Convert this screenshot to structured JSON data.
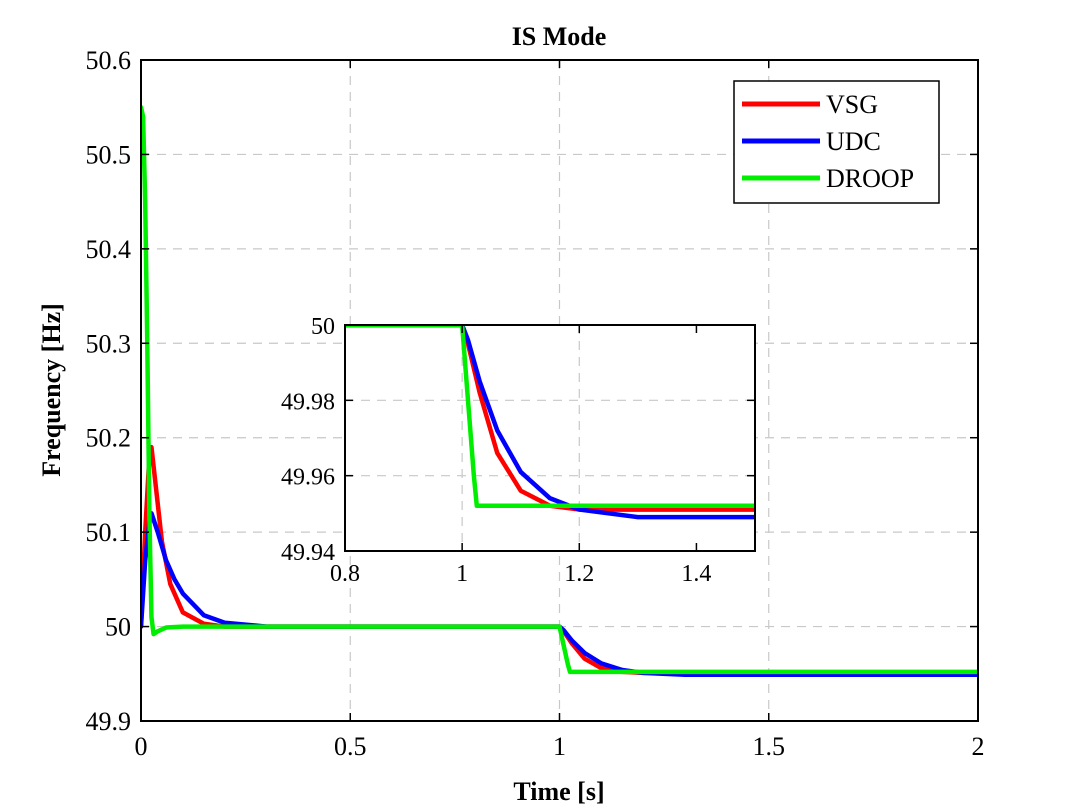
{
  "chart_data": {
    "type": "line",
    "title": "IS Mode",
    "xlabel": "Time [s]",
    "ylabel": "Frequency [Hz]",
    "xlim": [
      0,
      2
    ],
    "ylim": [
      49.9,
      50.6
    ],
    "x_ticks": [
      "0",
      "0.5",
      "1",
      "1.5",
      "2"
    ],
    "y_ticks": [
      "49.9",
      "50",
      "50.1",
      "50.2",
      "50.3",
      "50.4",
      "50.5",
      "50.6"
    ],
    "grid": true,
    "legend_position": "top-right",
    "series": [
      {
        "name": "VSG",
        "color": "#ff0000",
        "points": [
          [
            0,
            50
          ],
          [
            0.01,
            50.1
          ],
          [
            0.02,
            50.18
          ],
          [
            0.025,
            50.19
          ],
          [
            0.035,
            50.15
          ],
          [
            0.05,
            50.09
          ],
          [
            0.07,
            50.045
          ],
          [
            0.1,
            50.015
          ],
          [
            0.15,
            50.003
          ],
          [
            0.2,
            50
          ],
          [
            1,
            50
          ],
          [
            1.01,
            49.995
          ],
          [
            1.03,
            49.982
          ],
          [
            1.06,
            49.966
          ],
          [
            1.1,
            49.956
          ],
          [
            1.15,
            49.952
          ],
          [
            1.2,
            49.951
          ],
          [
            1.3,
            49.951
          ],
          [
            2,
            49.951
          ]
        ]
      },
      {
        "name": "UDC",
        "color": "#0000ff",
        "points": [
          [
            0,
            50
          ],
          [
            0.01,
            50.07
          ],
          [
            0.02,
            50.11
          ],
          [
            0.025,
            50.12
          ],
          [
            0.04,
            50.1
          ],
          [
            0.06,
            50.07
          ],
          [
            0.08,
            50.05
          ],
          [
            0.1,
            50.035
          ],
          [
            0.15,
            50.012
          ],
          [
            0.2,
            50.004
          ],
          [
            0.3,
            50
          ],
          [
            1,
            50
          ],
          [
            1.01,
            49.996
          ],
          [
            1.03,
            49.985
          ],
          [
            1.06,
            49.972
          ],
          [
            1.1,
            49.961
          ],
          [
            1.15,
            49.954
          ],
          [
            1.2,
            49.951
          ],
          [
            1.3,
            49.949
          ],
          [
            2,
            49.949
          ]
        ]
      },
      {
        "name": "DROOP",
        "color": "#00ee00",
        "points": [
          [
            0,
            50.55
          ],
          [
            0.005,
            50.54
          ],
          [
            0.01,
            50.45
          ],
          [
            0.015,
            50.3
          ],
          [
            0.02,
            50.12
          ],
          [
            0.025,
            50.01
          ],
          [
            0.03,
            49.992
          ],
          [
            0.04,
            49.995
          ],
          [
            0.06,
            49.999
          ],
          [
            0.1,
            50
          ],
          [
            1,
            50
          ],
          [
            1.01,
            49.98
          ],
          [
            1.02,
            49.96
          ],
          [
            1.025,
            49.952
          ],
          [
            1.05,
            49.952
          ],
          [
            2,
            49.952
          ]
        ]
      }
    ],
    "inset": {
      "xlim": [
        0.8,
        1.5
      ],
      "ylim": [
        49.94,
        50
      ],
      "x_ticks": [
        "0.8",
        "1",
        "1.2",
        "1.4"
      ],
      "y_ticks": [
        "49.94",
        "49.96",
        "49.98",
        "50"
      ],
      "grid": true
    }
  }
}
